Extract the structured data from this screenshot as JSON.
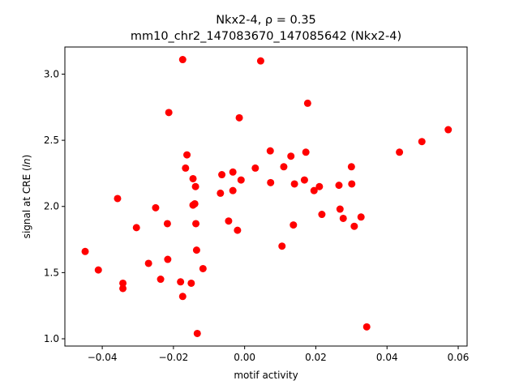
{
  "chart_data": {
    "type": "scatter",
    "title_line1": "Nkx2-4, ρ = 0.35",
    "title_line2": "mm10_chr2_147083670_147085642 (Nkx2-4)",
    "xlabel": "motif activity",
    "ylabel_prefix": "signal at CRE (",
    "ylabel_italic": "ln",
    "ylabel_suffix": ")",
    "xlim": [
      -0.0505,
      0.0625
    ],
    "ylim": [
      0.945,
      3.205
    ],
    "x_ticks": [
      -0.04,
      -0.02,
      0.0,
      0.02,
      0.04,
      0.06
    ],
    "x_tick_labels": [
      "−0.04",
      "−0.02",
      "0.00",
      "0.02",
      "0.04",
      "0.06"
    ],
    "y_ticks": [
      1.0,
      1.5,
      2.0,
      2.5,
      3.0
    ],
    "y_tick_labels": [
      "1.0",
      "1.5",
      "2.0",
      "2.5",
      "3.0"
    ],
    "grid": false,
    "marker_color": "#ff0000",
    "points": [
      {
        "x": -0.0448,
        "y": 1.66
      },
      {
        "x": -0.0411,
        "y": 1.52
      },
      {
        "x": -0.0357,
        "y": 2.06
      },
      {
        "x": -0.0342,
        "y": 1.42
      },
      {
        "x": -0.0342,
        "y": 1.38
      },
      {
        "x": -0.0304,
        "y": 1.84
      },
      {
        "x": -0.027,
        "y": 1.57
      },
      {
        "x": -0.025,
        "y": 1.99
      },
      {
        "x": -0.0236,
        "y": 1.45
      },
      {
        "x": -0.0217,
        "y": 1.87
      },
      {
        "x": -0.0216,
        "y": 1.6
      },
      {
        "x": -0.0213,
        "y": 2.71
      },
      {
        "x": -0.018,
        "y": 1.43
      },
      {
        "x": -0.0174,
        "y": 3.11
      },
      {
        "x": -0.0174,
        "y": 1.32
      },
      {
        "x": -0.0166,
        "y": 2.29
      },
      {
        "x": -0.0162,
        "y": 2.39
      },
      {
        "x": -0.015,
        "y": 1.42
      },
      {
        "x": -0.0145,
        "y": 2.21
      },
      {
        "x": -0.0145,
        "y": 2.01
      },
      {
        "x": -0.014,
        "y": 2.02
      },
      {
        "x": -0.0138,
        "y": 2.15
      },
      {
        "x": -0.0137,
        "y": 1.87
      },
      {
        "x": -0.0135,
        "y": 1.67
      },
      {
        "x": -0.0133,
        "y": 1.04
      },
      {
        "x": -0.0117,
        "y": 1.53
      },
      {
        "x": -0.0068,
        "y": 2.1
      },
      {
        "x": -0.0064,
        "y": 2.24
      },
      {
        "x": -0.0045,
        "y": 1.89
      },
      {
        "x": -0.0033,
        "y": 2.12
      },
      {
        "x": -0.0033,
        "y": 2.26
      },
      {
        "x": -0.002,
        "y": 1.82
      },
      {
        "x": -0.0015,
        "y": 2.67
      },
      {
        "x": -0.001,
        "y": 2.2
      },
      {
        "x": 0.003,
        "y": 2.29
      },
      {
        "x": 0.0045,
        "y": 3.1
      },
      {
        "x": 0.0072,
        "y": 2.42
      },
      {
        "x": 0.0073,
        "y": 2.18
      },
      {
        "x": 0.0105,
        "y": 1.7
      },
      {
        "x": 0.011,
        "y": 2.3
      },
      {
        "x": 0.013,
        "y": 2.38
      },
      {
        "x": 0.0137,
        "y": 1.86
      },
      {
        "x": 0.014,
        "y": 2.17
      },
      {
        "x": 0.0168,
        "y": 2.2
      },
      {
        "x": 0.0172,
        "y": 2.41
      },
      {
        "x": 0.0177,
        "y": 2.78
      },
      {
        "x": 0.0195,
        "y": 2.12
      },
      {
        "x": 0.021,
        "y": 2.15
      },
      {
        "x": 0.0217,
        "y": 1.94
      },
      {
        "x": 0.0265,
        "y": 2.16
      },
      {
        "x": 0.0268,
        "y": 1.98
      },
      {
        "x": 0.0277,
        "y": 1.91
      },
      {
        "x": 0.03,
        "y": 2.3
      },
      {
        "x": 0.0301,
        "y": 2.17
      },
      {
        "x": 0.0308,
        "y": 1.85
      },
      {
        "x": 0.0327,
        "y": 1.92
      },
      {
        "x": 0.0343,
        "y": 1.09
      },
      {
        "x": 0.0435,
        "y": 2.41
      },
      {
        "x": 0.0498,
        "y": 2.49
      },
      {
        "x": 0.0572,
        "y": 2.58
      }
    ]
  }
}
